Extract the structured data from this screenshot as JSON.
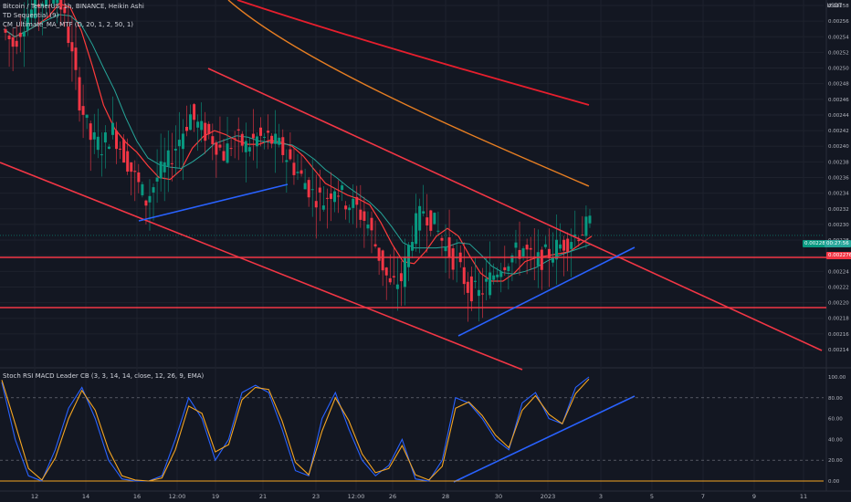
{
  "header": {
    "title": "Bitcoin / TetherUS, 1h, BINANCE, Heikin Ashi",
    "indicators": [
      "TD Sequential (9)",
      "CM_Ultimate_MA_MTF (D, 20, 1, 2, 50, 1)"
    ],
    "oscillator": "Stoch RSI MACD Leader CB (3, 3, 14, 14, close, 12, 26, 9, EMA)",
    "currency": "USDT"
  },
  "price_labels": {
    "last": "0.002286",
    "countdown": "00:27:56",
    "support": "0.002276"
  },
  "colors": {
    "background": "#131722",
    "bull": "#089981",
    "bear": "#f23645",
    "trendline_red": "#f23645",
    "trendline_blue": "#2962ff",
    "stoch_k": "#2962ff",
    "stoch_d": "#f5a623"
  },
  "chart_data": [
    {
      "type": "candlestick",
      "x_ticks": [
        "12",
        "14",
        "16",
        "12:00",
        "19",
        "21",
        "23",
        "12:00",
        "26",
        "28",
        "30",
        "2023",
        "3",
        "5",
        "7",
        "9",
        "11"
      ],
      "y_ticks": [
        0.00258,
        0.00256,
        0.00254,
        0.00252,
        0.0025,
        0.00248,
        0.00246,
        0.00244,
        0.00242,
        0.0024,
        0.00238,
        0.00236,
        0.00234,
        0.00232,
        0.0023,
        0.00228,
        0.00226,
        0.00224,
        0.00222,
        0.0022,
        0.00218,
        0.00216,
        0.00214
      ],
      "ylim": [
        0.00213,
        0.00261
      ],
      "close_path": [
        0.00255,
        0.00253,
        0.00256,
        0.00258,
        0.00259,
        0.0026,
        0.00254,
        0.00246,
        0.00241,
        0.0024,
        0.00242,
        0.00239,
        0.00236,
        0.00233,
        0.00236,
        0.00238,
        0.00241,
        0.00244,
        0.00242,
        0.00241,
        0.00239,
        0.00241,
        0.0024,
        0.00241,
        0.00241,
        0.0024,
        0.00238,
        0.00236,
        0.00234,
        0.00233,
        0.00235,
        0.00233,
        0.00232,
        0.0023,
        0.00226,
        0.00222,
        0.00223,
        0.00229,
        0.00232,
        0.0023,
        0.00227,
        0.00225,
        0.00222,
        0.00221,
        0.00223,
        0.00225,
        0.00226,
        0.00227,
        0.00225,
        0.00226,
        0.00227,
        0.00228,
        0.00229,
        0.0023
      ],
      "horizontal_levels": [
        0.00228,
        0.00222
      ],
      "last_price": 0.002286
    },
    {
      "type": "line",
      "title": "Stoch RSI MACD Leader CB",
      "y_ticks": [
        100,
        80,
        60,
        40,
        20,
        0
      ],
      "ylim": [
        -4,
        104
      ],
      "levels": [
        80,
        20
      ],
      "series": [
        {
          "name": "K",
          "values": [
            95,
            40,
            5,
            0,
            30,
            70,
            90,
            60,
            20,
            2,
            0,
            0,
            5,
            40,
            80,
            60,
            20,
            40,
            85,
            92,
            85,
            50,
            10,
            5,
            60,
            85,
            50,
            20,
            5,
            15,
            40,
            2,
            0,
            20,
            80,
            75,
            60,
            40,
            30,
            75,
            85,
            60,
            55,
            90,
            100
          ]
        },
        {
          "name": "D",
          "values": [
            97,
            55,
            12,
            1,
            22,
            60,
            87,
            68,
            30,
            5,
            1,
            0,
            3,
            30,
            72,
            65,
            28,
            35,
            78,
            90,
            88,
            58,
            18,
            6,
            48,
            80,
            58,
            26,
            8,
            12,
            34,
            6,
            1,
            14,
            70,
            76,
            63,
            44,
            32,
            68,
            82,
            64,
            55,
            84,
            98
          ]
        }
      ]
    }
  ]
}
